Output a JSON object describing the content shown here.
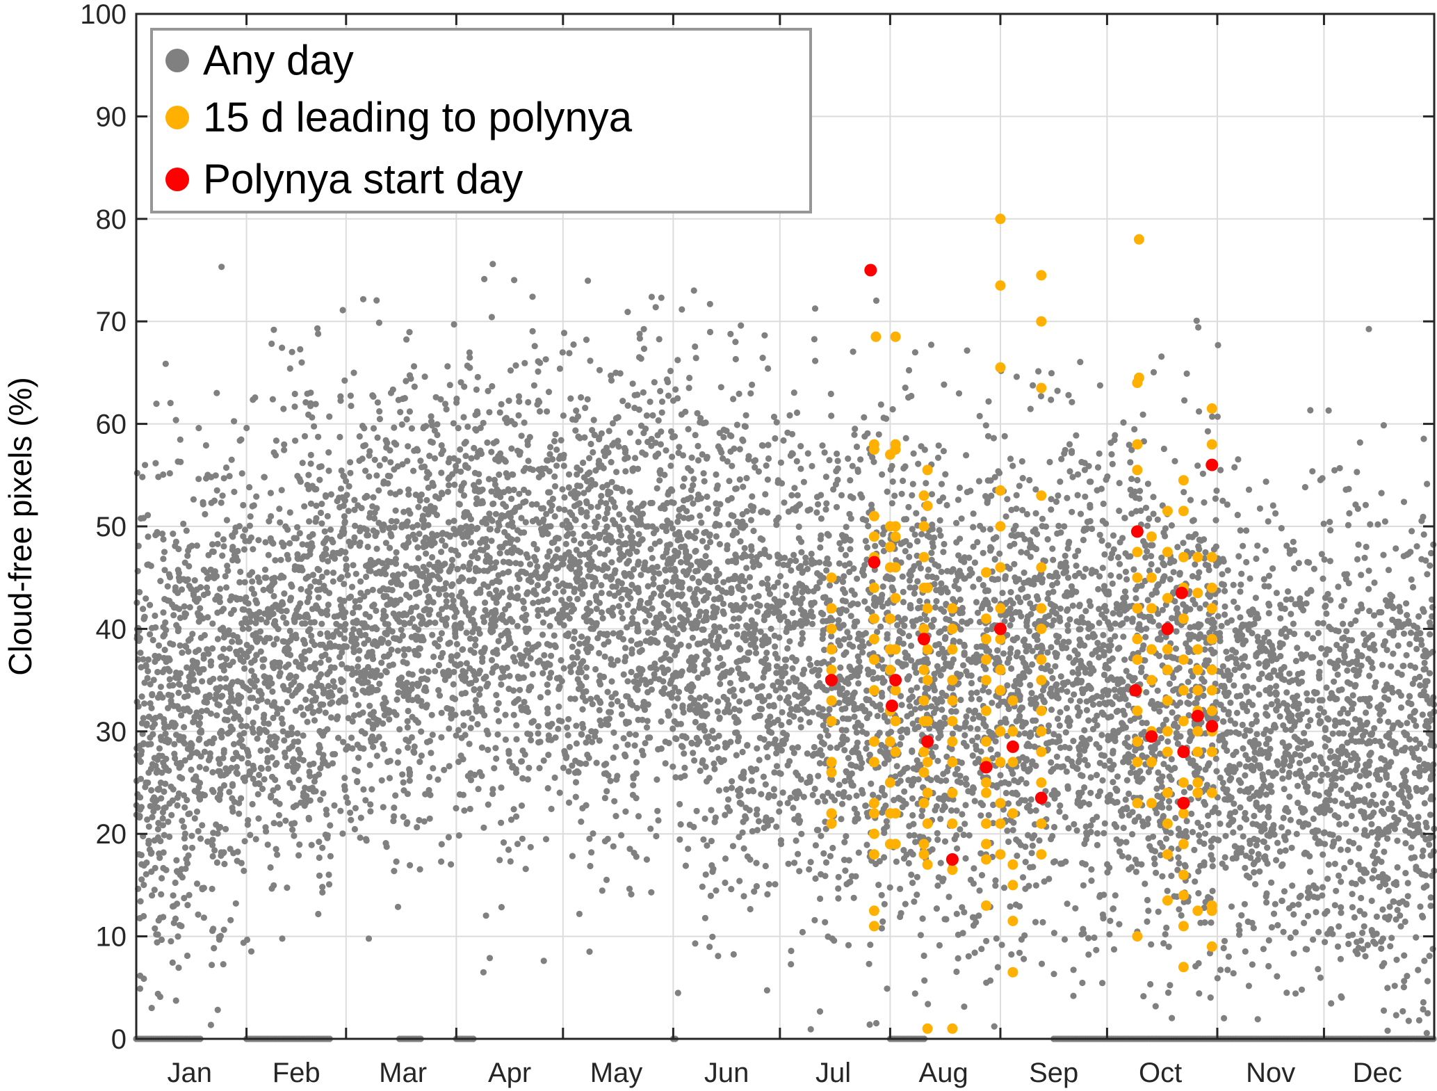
{
  "chart_data": {
    "type": "scatter",
    "ylabel": "Cloud-free pixels (%)",
    "ylim": [
      0,
      100
    ],
    "yticks": [
      0,
      10,
      20,
      30,
      40,
      50,
      60,
      70,
      80,
      90,
      100
    ],
    "xlim_days": [
      0,
      365
    ],
    "month_boundaries_days": [
      31,
      59,
      90,
      120,
      151,
      181,
      212,
      243,
      273,
      304,
      334
    ],
    "x_ticks": [
      {
        "label": "Jan",
        "day": 15
      },
      {
        "label": "Feb",
        "day": 45
      },
      {
        "label": "Mar",
        "day": 75
      },
      {
        "label": "Apr",
        "day": 105
      },
      {
        "label": "May",
        "day": 135
      },
      {
        "label": "Jun",
        "day": 166
      },
      {
        "label": "Jul",
        "day": 196
      },
      {
        "label": "Aug",
        "day": 227
      },
      {
        "label": "Sep",
        "day": 258
      },
      {
        "label": "Oct",
        "day": 288
      },
      {
        "label": "Nov",
        "day": 319
      },
      {
        "label": "Dec",
        "day": 349
      }
    ],
    "grid": true,
    "legend_position": "top-left",
    "series": [
      {
        "name": "Any day",
        "color": "#808080",
        "approx_points": 9000,
        "seasonal_center_by_month_pct": [
          32,
          38,
          42,
          45,
          44,
          40,
          36,
          34,
          36,
          33,
          30,
          26
        ],
        "note_zero_row_days": [
          [
            0,
            18
          ],
          [
            31,
            55
          ],
          [
            74,
            80
          ],
          [
            90,
            95
          ],
          [
            151,
            152
          ],
          [
            212,
            222
          ],
          [
            258,
            365
          ]
        ]
      },
      {
        "name": "15 d leading to polynya",
        "color": "#FFB000",
        "columns": [
          {
            "day": 195.5,
            "values": [
              45,
              42,
              40,
              38,
              36,
              33,
              31,
              27,
              26,
              22,
              21
            ]
          },
          {
            "day": 207.5,
            "values": [
              58,
              57.5,
              51,
              49,
              47,
              44,
              41,
              39,
              37,
              34,
              29,
              27,
              23,
              22,
              20,
              18,
              12.5,
              11
            ]
          },
          {
            "day": 208,
            "values": [
              68.5
            ]
          },
          {
            "day": 212,
            "values": [
              57,
              50,
              48,
              46,
              41,
              38,
              36,
              32,
              29,
              25,
              22,
              19
            ]
          },
          {
            "day": 213.5,
            "values": [
              68.5,
              58,
              57.5,
              50,
              49,
              46,
              43,
              38,
              34,
              31,
              28,
              22,
              19
            ]
          },
          {
            "day": 221.5,
            "values": [
              53,
              50,
              47,
              44,
              40,
              36,
              33,
              31,
              28,
              26,
              23,
              19,
              18
            ]
          },
          {
            "day": 222.5,
            "values": [
              55.5,
              52,
              44,
              42,
              38,
              35,
              31,
              27,
              24,
              21,
              17,
              1
            ]
          },
          {
            "day": 229.5,
            "values": [
              42,
              40,
              38,
              35,
              33,
              31,
              29,
              27,
              24,
              21,
              16.5,
              1
            ]
          },
          {
            "day": 239,
            "values": [
              45.5,
              41,
              39,
              37,
              35,
              32,
              29,
              27,
              25,
              24,
              21,
              19,
              17.5,
              13
            ]
          },
          {
            "day": 243,
            "values": [
              80,
              73.5,
              65.5,
              53.5,
              50,
              46,
              42,
              39,
              36,
              34,
              30,
              27,
              23,
              21,
              18
            ]
          },
          {
            "day": 246.5,
            "values": [
              33,
              30,
              27,
              22,
              17,
              15,
              11.5,
              6.5
            ]
          },
          {
            "day": 254.5,
            "values": [
              74.5,
              70,
              63.5,
              53,
              46,
              42,
              40,
              37,
              35,
              32,
              30,
              28,
              25,
              21,
              18
            ]
          },
          {
            "day": 281.5,
            "values": [
              64,
              58,
              55.5,
              47.5,
              45,
              42,
              39,
              37,
              34,
              32,
              29,
              27,
              23,
              10
            ]
          },
          {
            "day": 282,
            "values": [
              78,
              64.5
            ]
          },
          {
            "day": 285.5,
            "values": [
              49,
              45,
              42,
              38,
              35,
              30,
              27,
              23
            ]
          },
          {
            "day": 290,
            "values": [
              51.5,
              47.5,
              43,
              40,
              38,
              36,
              33,
              30,
              28,
              24,
              21,
              18,
              13.5
            ]
          },
          {
            "day": 294.5,
            "values": [
              54.5,
              51.5,
              47,
              44,
              41,
              37,
              34,
              31,
              28,
              25,
              22,
              19,
              16,
              14,
              11,
              7
            ]
          },
          {
            "day": 298.5,
            "values": [
              47,
              43.5,
              38,
              36,
              34,
              32,
              30,
              28,
              25,
              24,
              12.5
            ]
          },
          {
            "day": 302.5,
            "values": [
              61.5,
              58,
              47,
              44,
              42,
              39,
              36,
              34,
              32,
              30,
              28,
              24,
              13,
              12.5,
              9
            ]
          }
        ]
      },
      {
        "name": "Polynya start day",
        "color": "#FF0000",
        "points": [
          {
            "day": 195.5,
            "value": 35
          },
          {
            "day": 206.5,
            "value": 75
          },
          {
            "day": 207.5,
            "value": 46.5
          },
          {
            "day": 212.5,
            "value": 32.5
          },
          {
            "day": 213.5,
            "value": 35
          },
          {
            "day": 221.5,
            "value": 39
          },
          {
            "day": 222.5,
            "value": 29
          },
          {
            "day": 229.5,
            "value": 17.5
          },
          {
            "day": 239,
            "value": 26.5
          },
          {
            "day": 243,
            "value": 40
          },
          {
            "day": 246.5,
            "value": 28.5
          },
          {
            "day": 254.5,
            "value": 23.5
          },
          {
            "day": 281.5,
            "value": 49.5
          },
          {
            "day": 281,
            "value": 34
          },
          {
            "day": 285.5,
            "value": 29.5
          },
          {
            "day": 290,
            "value": 40
          },
          {
            "day": 294,
            "value": 43.5
          },
          {
            "day": 294.5,
            "value": 28
          },
          {
            "day": 294.5,
            "value": 23
          },
          {
            "day": 298.5,
            "value": 31.5
          },
          {
            "day": 302.5,
            "value": 30.5
          },
          {
            "day": 302.5,
            "value": 56
          }
        ]
      }
    ]
  },
  "legend": {
    "items": [
      {
        "label": "Any day",
        "color": "#808080"
      },
      {
        "label": "15 d leading to polynya",
        "color": "#FFB000"
      },
      {
        "label": "Polynya start day",
        "color": "#FF0000"
      }
    ]
  }
}
